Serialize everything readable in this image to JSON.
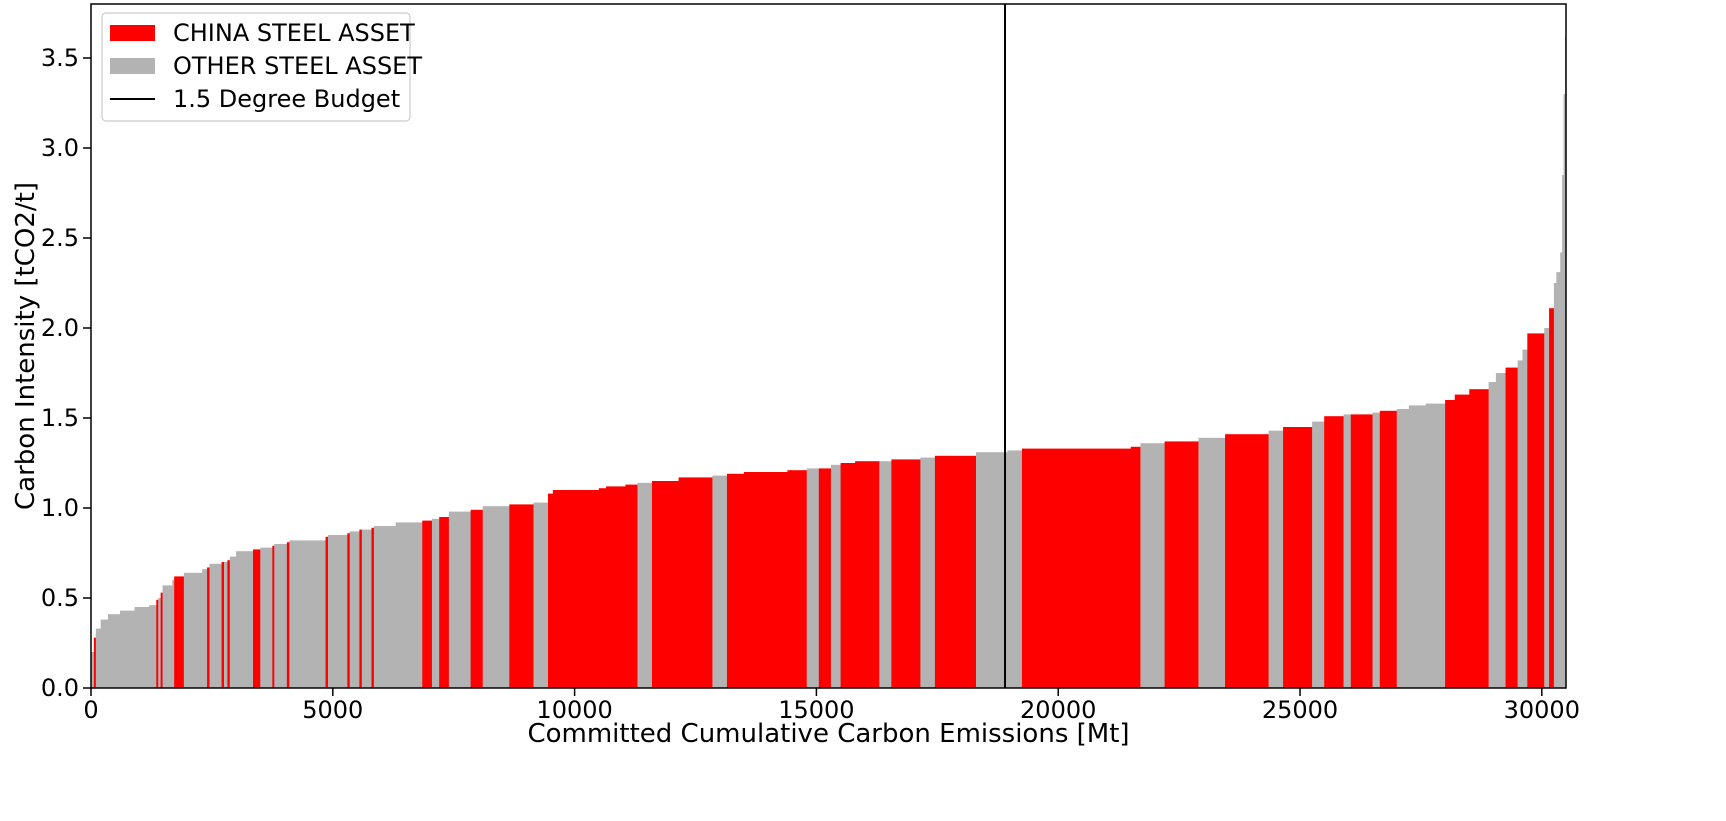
{
  "chart_data": {
    "type": "bar",
    "subtype": "variable-width cost curve",
    "xlabel": "Committed Cumulative Carbon Emissions [Mt]",
    "ylabel": "Carbon Intensity [tCO2/t]",
    "xlim": [
      0,
      30500
    ],
    "ylim": [
      0,
      3.8
    ],
    "xticks": [
      0,
      5000,
      10000,
      15000,
      20000,
      25000,
      30000
    ],
    "xtick_labels": [
      "0",
      "5000",
      "10000",
      "15000",
      "20000",
      "25000",
      "30000"
    ],
    "yticks": [
      0.0,
      0.5,
      1.0,
      1.5,
      2.0,
      2.5,
      3.0,
      3.5
    ],
    "ytick_labels": [
      "0.0",
      "0.5",
      "1.0",
      "1.5",
      "2.0",
      "2.5",
      "3.0",
      "3.5"
    ],
    "grid": false,
    "legend_position": "upper-left",
    "legend": [
      {
        "label": "CHINA STEEL ASSET",
        "kind": "patch",
        "color": "#ff0000"
      },
      {
        "label": "OTHER STEEL ASSET",
        "kind": "patch",
        "color": "#b3b3b3"
      },
      {
        "label": "1.5 Degree Budget",
        "kind": "line",
        "color": "#000000"
      }
    ],
    "budget_line_x": 18900,
    "colors": {
      "china": "#ff0000",
      "other": "#b3b3b3"
    },
    "segments": [
      {
        "x0": 0,
        "x1": 60,
        "y": 0.2,
        "type": "other"
      },
      {
        "x0": 60,
        "x1": 100,
        "y": 0.28,
        "type": "china"
      },
      {
        "x0": 100,
        "x1": 200,
        "y": 0.33,
        "type": "other"
      },
      {
        "x0": 200,
        "x1": 350,
        "y": 0.38,
        "type": "other"
      },
      {
        "x0": 350,
        "x1": 600,
        "y": 0.41,
        "type": "other"
      },
      {
        "x0": 600,
        "x1": 900,
        "y": 0.43,
        "type": "other"
      },
      {
        "x0": 900,
        "x1": 1200,
        "y": 0.45,
        "type": "other"
      },
      {
        "x0": 1200,
        "x1": 1350,
        "y": 0.46,
        "type": "other"
      },
      {
        "x0": 1350,
        "x1": 1390,
        "y": 0.49,
        "type": "china"
      },
      {
        "x0": 1390,
        "x1": 1440,
        "y": 0.5,
        "type": "other"
      },
      {
        "x0": 1440,
        "x1": 1480,
        "y": 0.53,
        "type": "china"
      },
      {
        "x0": 1480,
        "x1": 1680,
        "y": 0.57,
        "type": "other"
      },
      {
        "x0": 1680,
        "x1": 1720,
        "y": 0.6,
        "type": "other"
      },
      {
        "x0": 1720,
        "x1": 1920,
        "y": 0.62,
        "type": "china"
      },
      {
        "x0": 1920,
        "x1": 2300,
        "y": 0.64,
        "type": "other"
      },
      {
        "x0": 2300,
        "x1": 2400,
        "y": 0.66,
        "type": "other"
      },
      {
        "x0": 2400,
        "x1": 2450,
        "y": 0.67,
        "type": "china"
      },
      {
        "x0": 2450,
        "x1": 2700,
        "y": 0.69,
        "type": "other"
      },
      {
        "x0": 2700,
        "x1": 2750,
        "y": 0.7,
        "type": "china"
      },
      {
        "x0": 2750,
        "x1": 2820,
        "y": 0.7,
        "type": "other"
      },
      {
        "x0": 2820,
        "x1": 2870,
        "y": 0.71,
        "type": "china"
      },
      {
        "x0": 2870,
        "x1": 3000,
        "y": 0.73,
        "type": "other"
      },
      {
        "x0": 3000,
        "x1": 3350,
        "y": 0.76,
        "type": "other"
      },
      {
        "x0": 3350,
        "x1": 3500,
        "y": 0.77,
        "type": "china"
      },
      {
        "x0": 3500,
        "x1": 3750,
        "y": 0.78,
        "type": "other"
      },
      {
        "x0": 3750,
        "x1": 3790,
        "y": 0.79,
        "type": "china"
      },
      {
        "x0": 3790,
        "x1": 4050,
        "y": 0.8,
        "type": "other"
      },
      {
        "x0": 4050,
        "x1": 4100,
        "y": 0.81,
        "type": "china"
      },
      {
        "x0": 4100,
        "x1": 4850,
        "y": 0.82,
        "type": "other"
      },
      {
        "x0": 4850,
        "x1": 4900,
        "y": 0.84,
        "type": "china"
      },
      {
        "x0": 4900,
        "x1": 5300,
        "y": 0.85,
        "type": "other"
      },
      {
        "x0": 5300,
        "x1": 5350,
        "y": 0.86,
        "type": "china"
      },
      {
        "x0": 5350,
        "x1": 5550,
        "y": 0.87,
        "type": "other"
      },
      {
        "x0": 5550,
        "x1": 5600,
        "y": 0.88,
        "type": "china"
      },
      {
        "x0": 5600,
        "x1": 5800,
        "y": 0.88,
        "type": "other"
      },
      {
        "x0": 5800,
        "x1": 5850,
        "y": 0.89,
        "type": "china"
      },
      {
        "x0": 5850,
        "x1": 6300,
        "y": 0.9,
        "type": "other"
      },
      {
        "x0": 6300,
        "x1": 6850,
        "y": 0.92,
        "type": "other"
      },
      {
        "x0": 6850,
        "x1": 7050,
        "y": 0.93,
        "type": "china"
      },
      {
        "x0": 7050,
        "x1": 7200,
        "y": 0.94,
        "type": "other"
      },
      {
        "x0": 7200,
        "x1": 7400,
        "y": 0.95,
        "type": "china"
      },
      {
        "x0": 7400,
        "x1": 7850,
        "y": 0.98,
        "type": "other"
      },
      {
        "x0": 7850,
        "x1": 8100,
        "y": 0.99,
        "type": "china"
      },
      {
        "x0": 8100,
        "x1": 8650,
        "y": 1.01,
        "type": "other"
      },
      {
        "x0": 8650,
        "x1": 9150,
        "y": 1.02,
        "type": "china"
      },
      {
        "x0": 9150,
        "x1": 9450,
        "y": 1.03,
        "type": "other"
      },
      {
        "x0": 9450,
        "x1": 9550,
        "y": 1.08,
        "type": "china"
      },
      {
        "x0": 9550,
        "x1": 10500,
        "y": 1.1,
        "type": "china"
      },
      {
        "x0": 10500,
        "x1": 10650,
        "y": 1.11,
        "type": "china"
      },
      {
        "x0": 10650,
        "x1": 11050,
        "y": 1.12,
        "type": "china"
      },
      {
        "x0": 11050,
        "x1": 11300,
        "y": 1.13,
        "type": "china"
      },
      {
        "x0": 11300,
        "x1": 11600,
        "y": 1.14,
        "type": "other"
      },
      {
        "x0": 11600,
        "x1": 12150,
        "y": 1.15,
        "type": "china"
      },
      {
        "x0": 12150,
        "x1": 12850,
        "y": 1.17,
        "type": "china"
      },
      {
        "x0": 12850,
        "x1": 13150,
        "y": 1.18,
        "type": "other"
      },
      {
        "x0": 13150,
        "x1": 13500,
        "y": 1.19,
        "type": "china"
      },
      {
        "x0": 13500,
        "x1": 14400,
        "y": 1.2,
        "type": "china"
      },
      {
        "x0": 14400,
        "x1": 14800,
        "y": 1.21,
        "type": "china"
      },
      {
        "x0": 14800,
        "x1": 15050,
        "y": 1.22,
        "type": "other"
      },
      {
        "x0": 15050,
        "x1": 15300,
        "y": 1.22,
        "type": "china"
      },
      {
        "x0": 15300,
        "x1": 15500,
        "y": 1.24,
        "type": "other"
      },
      {
        "x0": 15500,
        "x1": 15800,
        "y": 1.25,
        "type": "china"
      },
      {
        "x0": 15800,
        "x1": 16300,
        "y": 1.26,
        "type": "china"
      },
      {
        "x0": 16300,
        "x1": 16550,
        "y": 1.26,
        "type": "other"
      },
      {
        "x0": 16550,
        "x1": 17150,
        "y": 1.27,
        "type": "china"
      },
      {
        "x0": 17150,
        "x1": 17450,
        "y": 1.28,
        "type": "other"
      },
      {
        "x0": 17450,
        "x1": 17750,
        "y": 1.29,
        "type": "china"
      },
      {
        "x0": 17750,
        "x1": 18300,
        "y": 1.29,
        "type": "china"
      },
      {
        "x0": 18300,
        "x1": 18950,
        "y": 1.31,
        "type": "other"
      },
      {
        "x0": 18950,
        "x1": 19250,
        "y": 1.32,
        "type": "other"
      },
      {
        "x0": 19250,
        "x1": 21500,
        "y": 1.33,
        "type": "china"
      },
      {
        "x0": 21500,
        "x1": 21700,
        "y": 1.34,
        "type": "china"
      },
      {
        "x0": 21700,
        "x1": 22200,
        "y": 1.36,
        "type": "other"
      },
      {
        "x0": 22200,
        "x1": 22900,
        "y": 1.37,
        "type": "china"
      },
      {
        "x0": 22900,
        "x1": 23450,
        "y": 1.39,
        "type": "other"
      },
      {
        "x0": 23450,
        "x1": 24350,
        "y": 1.41,
        "type": "china"
      },
      {
        "x0": 24350,
        "x1": 24650,
        "y": 1.43,
        "type": "other"
      },
      {
        "x0": 24650,
        "x1": 25250,
        "y": 1.45,
        "type": "china"
      },
      {
        "x0": 25250,
        "x1": 25500,
        "y": 1.48,
        "type": "other"
      },
      {
        "x0": 25500,
        "x1": 25900,
        "y": 1.51,
        "type": "china"
      },
      {
        "x0": 25900,
        "x1": 26050,
        "y": 1.52,
        "type": "other"
      },
      {
        "x0": 26050,
        "x1": 26500,
        "y": 1.52,
        "type": "china"
      },
      {
        "x0": 26500,
        "x1": 26650,
        "y": 1.53,
        "type": "other"
      },
      {
        "x0": 26650,
        "x1": 27000,
        "y": 1.54,
        "type": "china"
      },
      {
        "x0": 27000,
        "x1": 27250,
        "y": 1.55,
        "type": "other"
      },
      {
        "x0": 27250,
        "x1": 27600,
        "y": 1.57,
        "type": "other"
      },
      {
        "x0": 27600,
        "x1": 28000,
        "y": 1.58,
        "type": "other"
      },
      {
        "x0": 28000,
        "x1": 28200,
        "y": 1.6,
        "type": "china"
      },
      {
        "x0": 28200,
        "x1": 28500,
        "y": 1.63,
        "type": "china"
      },
      {
        "x0": 28500,
        "x1": 28900,
        "y": 1.66,
        "type": "china"
      },
      {
        "x0": 28900,
        "x1": 29050,
        "y": 1.7,
        "type": "other"
      },
      {
        "x0": 29050,
        "x1": 29250,
        "y": 1.75,
        "type": "other"
      },
      {
        "x0": 29250,
        "x1": 29500,
        "y": 1.78,
        "type": "china"
      },
      {
        "x0": 29500,
        "x1": 29600,
        "y": 1.82,
        "type": "other"
      },
      {
        "x0": 29600,
        "x1": 29700,
        "y": 1.88,
        "type": "other"
      },
      {
        "x0": 29700,
        "x1": 30050,
        "y": 1.97,
        "type": "china"
      },
      {
        "x0": 30050,
        "x1": 30150,
        "y": 2.0,
        "type": "other"
      },
      {
        "x0": 30150,
        "x1": 30250,
        "y": 2.11,
        "type": "china"
      },
      {
        "x0": 30250,
        "x1": 30300,
        "y": 2.25,
        "type": "other"
      },
      {
        "x0": 30300,
        "x1": 30380,
        "y": 2.31,
        "type": "other"
      },
      {
        "x0": 30380,
        "x1": 30420,
        "y": 2.42,
        "type": "other"
      },
      {
        "x0": 30420,
        "x1": 30450,
        "y": 2.85,
        "type": "other"
      },
      {
        "x0": 30450,
        "x1": 30480,
        "y": 3.3,
        "type": "other"
      },
      {
        "x0": 30480,
        "x1": 30500,
        "y": 3.62,
        "type": "other"
      }
    ]
  }
}
